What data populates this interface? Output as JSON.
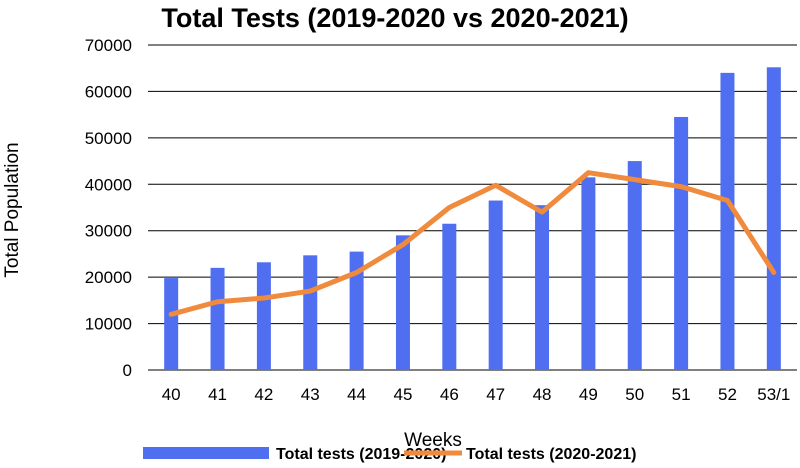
{
  "chart_data": {
    "type": "bar",
    "title": "Total Tests (2019-2020 vs 2020-2021)",
    "xlabel": "Weeks",
    "ylabel": "Total Population",
    "ylim": [
      0,
      70000
    ],
    "yticks": [
      0,
      10000,
      20000,
      30000,
      40000,
      50000,
      60000,
      70000
    ],
    "categories": [
      "40",
      "41",
      "42",
      "43",
      "44",
      "45",
      "46",
      "47",
      "48",
      "49",
      "50",
      "51",
      "52",
      "53/1"
    ],
    "series": [
      {
        "name": "Total tests (2019-2020)",
        "type": "bar",
        "color": "#4f6ff0",
        "values": [
          19800,
          22000,
          23200,
          24700,
          25500,
          29000,
          31500,
          36500,
          35500,
          41500,
          45000,
          54500,
          64000,
          65200
        ]
      },
      {
        "name": "Total tests (2020-2021)",
        "type": "line",
        "color": "#f08a3c",
        "values": [
          12000,
          14700,
          15500,
          17000,
          21000,
          27000,
          35000,
          39800,
          34000,
          42500,
          41000,
          39500,
          36500,
          21000
        ]
      }
    ],
    "legend_position": "bottom",
    "grid": true
  }
}
